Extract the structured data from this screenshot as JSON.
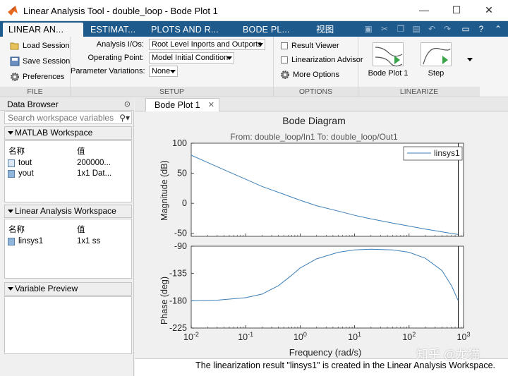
{
  "window": {
    "title": "Linear Analysis Tool - double_loop - Bode Plot 1",
    "minimize": "—",
    "maximize": "☐",
    "close": "✕"
  },
  "ribbon_tabs": [
    "LINEAR AN...",
    "ESTIMAT...",
    "PLOTS AND R...",
    "BODE PL...",
    "视图"
  ],
  "ribbon": {
    "file": {
      "label": "FILE",
      "load_session": "Load Session",
      "save_session": "Save Session",
      "preferences": "Preferences"
    },
    "setup": {
      "label": "SETUP",
      "analysis_ios_label": "Analysis I/Os:",
      "analysis_ios_value": "Root Level Inports and Outports",
      "operating_point_label": "Operating Point:",
      "operating_point_value": "Model Initial Condition",
      "param_variations_label": "Parameter Variations:",
      "param_variations_value": "None"
    },
    "options": {
      "label": "OPTIONS",
      "result_viewer": "Result Viewer",
      "linearization_advisor": "Linearization Advisor",
      "more_options": "More Options"
    },
    "linearize": {
      "label": "LINEARIZE",
      "bode_plot": "Bode Plot 1",
      "step": "Step"
    }
  },
  "data_browser": {
    "title": "Data Browser",
    "search_placeholder": "Search workspace variables",
    "matlab_ws": {
      "title": "MATLAB Workspace",
      "col_name": "名称",
      "col_value": "值",
      "rows": [
        {
          "name": "tout",
          "value": "200000..."
        },
        {
          "name": "yout",
          "value": "1x1 Dat..."
        }
      ]
    },
    "linear_ws": {
      "title": "Linear Analysis Workspace",
      "col_name": "名称",
      "col_value": "值",
      "rows": [
        {
          "name": "linsys1",
          "value": "1x1 ss"
        }
      ]
    },
    "variable_preview": {
      "title": "Variable Preview"
    }
  },
  "doc_tab": {
    "label": "Bode Plot 1",
    "close": "✕"
  },
  "chart_data": {
    "type": "line",
    "title": "Bode Diagram",
    "subtitle": "From: double_loop/In1  To: double_loop/Out1",
    "xlabel": "Frequency  (rad/s)",
    "xscale": "log",
    "xlim": [
      0.01,
      1000
    ],
    "x_ticks": [
      "10-2",
      "10-1",
      "100",
      "101",
      "102",
      "103"
    ],
    "legend": {
      "entries": [
        "linsys1"
      ],
      "placement": "top-right"
    },
    "color": "#3c7fb8",
    "magnitude": {
      "ylabel": "Magnitude (dB)",
      "ylim": [
        -55,
        100
      ],
      "y_ticks": [
        100,
        50,
        0,
        -50
      ],
      "x": [
        0.01,
        0.02,
        0.05,
        0.1,
        0.2,
        0.5,
        1,
        2,
        5,
        10,
        20,
        50,
        100,
        200,
        500,
        800
      ],
      "y": [
        80,
        68,
        52,
        40,
        28,
        15,
        5,
        -4,
        -13,
        -20,
        -26,
        -33,
        -38,
        -43,
        -49,
        -52
      ]
    },
    "phase": {
      "ylabel": "Phase (deg)",
      "ylim": [
        -225,
        -90
      ],
      "y_ticks": [
        -90,
        -135,
        -180,
        -225
      ],
      "x": [
        0.01,
        0.03,
        0.1,
        0.2,
        0.4,
        0.7,
        1,
        2,
        5,
        10,
        20,
        50,
        100,
        200,
        400,
        600,
        800
      ],
      "y": [
        -180,
        -179,
        -175,
        -169,
        -155,
        -138,
        -126,
        -111,
        -100,
        -96,
        -95,
        -96,
        -100,
        -110,
        -130,
        -155,
        -180
      ]
    },
    "marker_x": 800
  },
  "status": "The linearization result \"linsys1\" is created in the Linear Analysis Workspace.",
  "watermark": "知乎 @龙猫"
}
